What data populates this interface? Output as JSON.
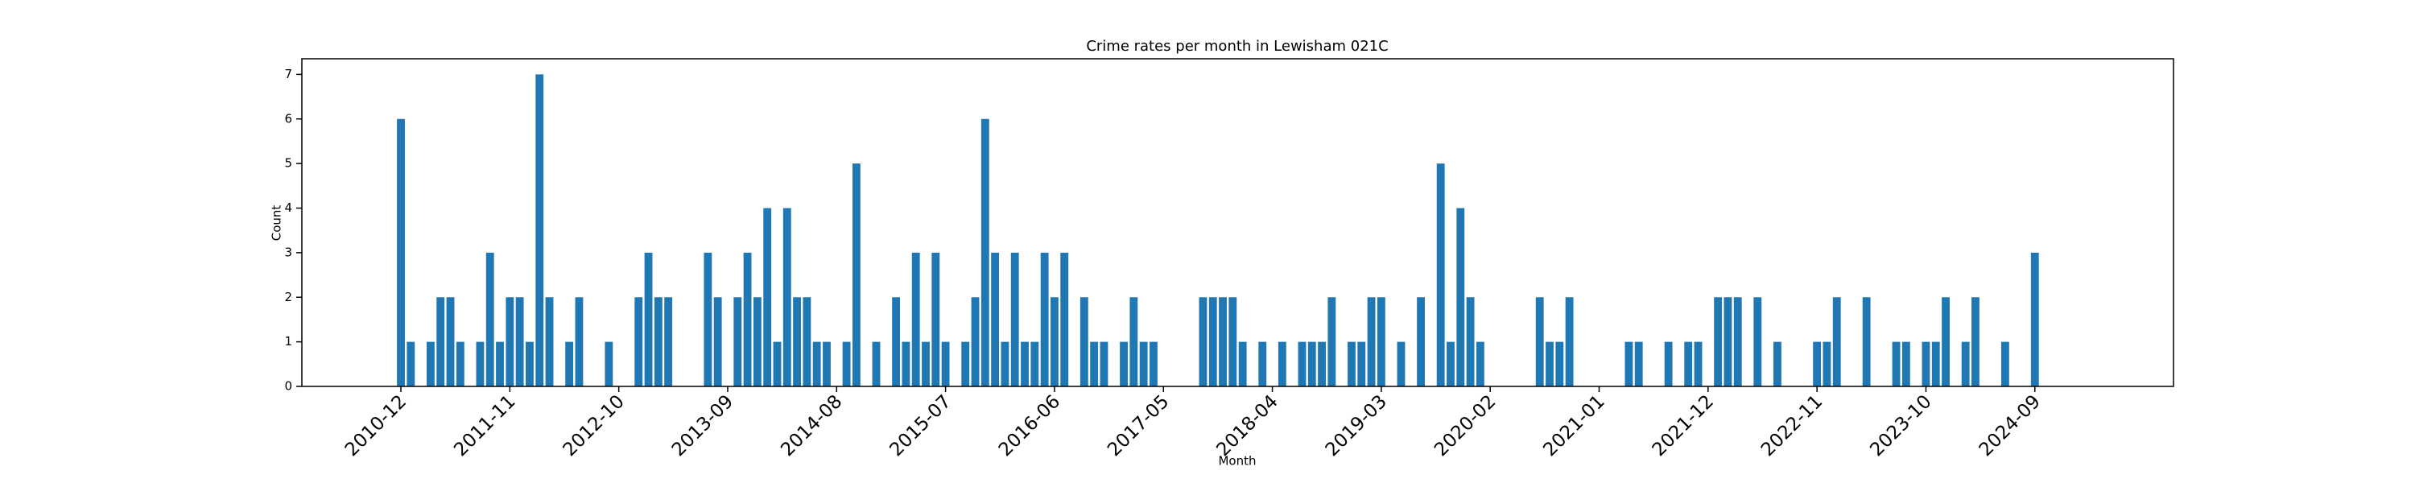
{
  "chart_data": {
    "type": "bar",
    "title": "Crime rates per month in Lewisham 021C",
    "xlabel": "Month",
    "ylabel": "Count",
    "color": "#1f77b4",
    "x": [
      "2010-12",
      "2011-01",
      "2011-03",
      "2011-04",
      "2011-05",
      "2011-06",
      "2011-08",
      "2011-09",
      "2011-10",
      "2011-11",
      "2011-12",
      "2012-01",
      "2012-02",
      "2012-03",
      "2012-05",
      "2012-06",
      "2012-09",
      "2012-12",
      "2013-01",
      "2013-02",
      "2013-03",
      "2013-07",
      "2013-08",
      "2013-10",
      "2013-11",
      "2013-12",
      "2014-01",
      "2014-02",
      "2014-03",
      "2014-04",
      "2014-05",
      "2014-06",
      "2014-07",
      "2014-09",
      "2014-10",
      "2014-12",
      "2015-02",
      "2015-03",
      "2015-04",
      "2015-05",
      "2015-06",
      "2015-07",
      "2015-09",
      "2015-10",
      "2015-11",
      "2015-12",
      "2016-01",
      "2016-02",
      "2016-03",
      "2016-04",
      "2016-05",
      "2016-06",
      "2016-07",
      "2016-09",
      "2016-10",
      "2016-11",
      "2017-01",
      "2017-02",
      "2017-03",
      "2017-04",
      "2017-09",
      "2017-10",
      "2017-11",
      "2017-12",
      "2018-01",
      "2018-03",
      "2018-05",
      "2018-07",
      "2018-08",
      "2018-09",
      "2018-10",
      "2018-12",
      "2019-01",
      "2019-02",
      "2019-03",
      "2019-05",
      "2019-07",
      "2019-09",
      "2019-10",
      "2019-11",
      "2019-12",
      "2020-01",
      "2020-07",
      "2020-08",
      "2020-09",
      "2020-10",
      "2021-04",
      "2021-05",
      "2021-08",
      "2021-10",
      "2021-11",
      "2022-01",
      "2022-02",
      "2022-03",
      "2022-05",
      "2022-07",
      "2022-11",
      "2022-12",
      "2023-01",
      "2023-04",
      "2023-07",
      "2023-08",
      "2023-10",
      "2023-11",
      "2023-12",
      "2024-02",
      "2024-03",
      "2024-06",
      "2024-09"
    ],
    "values": [
      6,
      1,
      1,
      2,
      2,
      1,
      1,
      3,
      1,
      2,
      2,
      1,
      7,
      2,
      1,
      2,
      1,
      2,
      3,
      2,
      2,
      3,
      2,
      2,
      3,
      2,
      4,
      1,
      4,
      2,
      2,
      1,
      1,
      1,
      5,
      1,
      2,
      1,
      3,
      1,
      3,
      1,
      1,
      2,
      6,
      3,
      1,
      3,
      1,
      1,
      3,
      2,
      3,
      2,
      1,
      1,
      1,
      2,
      1,
      1,
      2,
      2,
      2,
      2,
      1,
      1,
      1,
      1,
      1,
      1,
      2,
      1,
      1,
      2,
      2,
      1,
      2,
      5,
      1,
      4,
      2,
      1,
      2,
      1,
      1,
      2,
      1,
      1,
      1,
      1,
      1,
      2,
      2,
      2,
      2,
      1,
      1,
      1,
      2,
      2,
      1,
      1,
      1,
      1,
      2,
      1,
      2,
      1,
      3
    ],
    "xlim": [
      "2010-02",
      "2025-11"
    ],
    "xticks": [
      "2010-12",
      "2011-11",
      "2012-10",
      "2013-09",
      "2014-08",
      "2015-07",
      "2016-06",
      "2017-05",
      "2018-04",
      "2019-03",
      "2020-02",
      "2021-01",
      "2021-12",
      "2022-11",
      "2023-10",
      "2024-09"
    ],
    "ylim": [
      0,
      7.35
    ],
    "yticks": [
      0,
      1,
      2,
      3,
      4,
      5,
      6,
      7
    ]
  }
}
